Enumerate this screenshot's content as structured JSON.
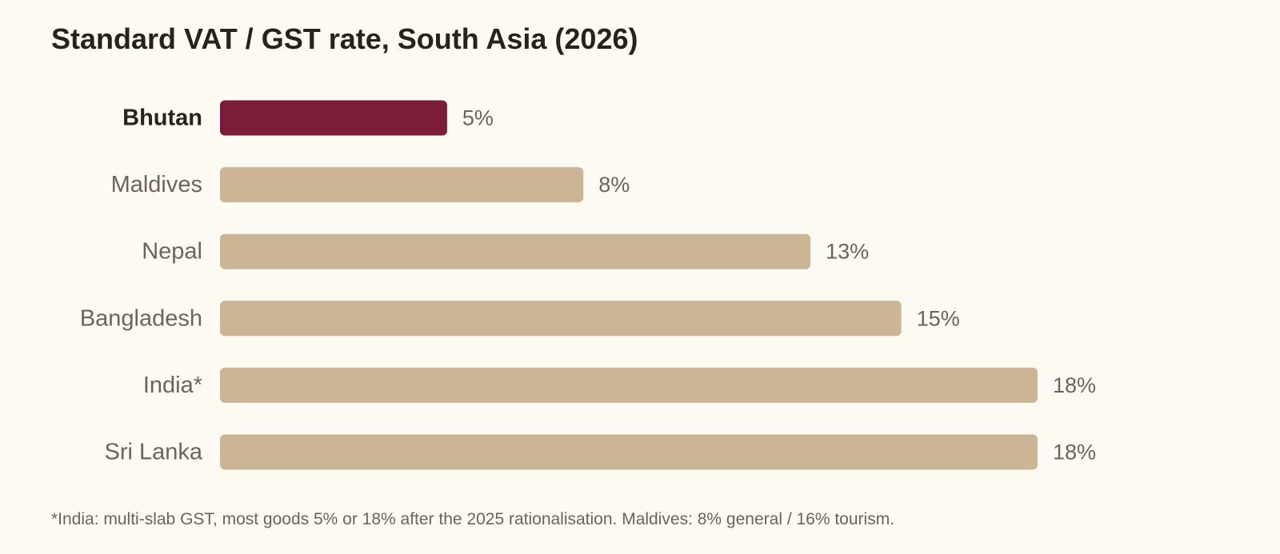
{
  "chart_data": {
    "type": "bar",
    "orientation": "horizontal",
    "title": "Standard VAT / GST rate, South Asia (2026)",
    "xlabel": "",
    "ylabel": "",
    "value_suffix": "%",
    "xlim": [
      0,
      18
    ],
    "grid": false,
    "legend": "none",
    "highlight": "Bhutan",
    "categories": [
      "Bhutan",
      "Maldives",
      "Nepal",
      "Bangladesh",
      "India*",
      "Sri Lanka"
    ],
    "values": [
      5,
      8,
      13,
      15,
      18,
      18
    ],
    "data_labels": [
      "5%",
      "8%",
      "13%",
      "15%",
      "18%",
      "18%"
    ],
    "colors": {
      "highlight": "#7b1d38",
      "default": "#cbb594",
      "highlight_label": "#2b211b",
      "label": "#6e6358",
      "title": "#2b211b"
    }
  },
  "footnote": "*India: multi-slab GST, most goods 5% or 18% after the 2025 rationalisation. Maldives: 8% general / 16% tourism."
}
